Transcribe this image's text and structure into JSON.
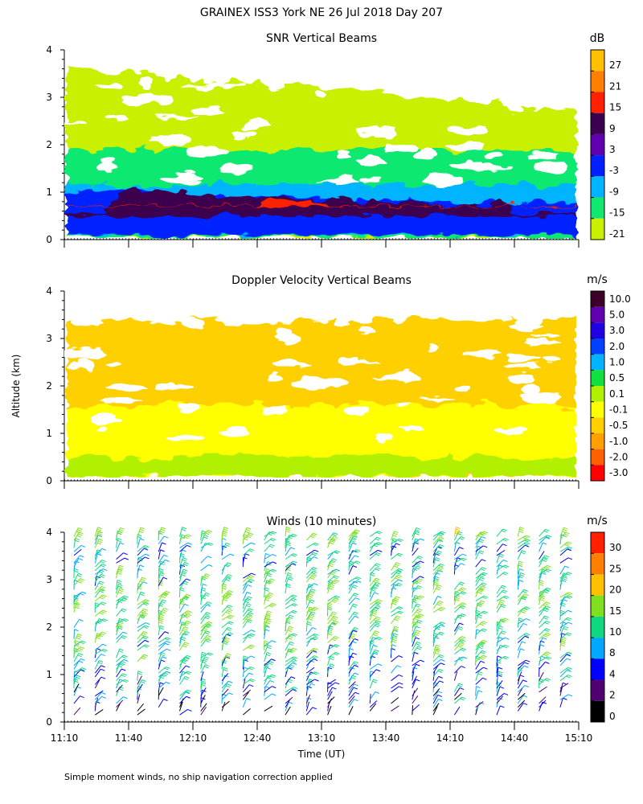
{
  "figure_title": "GRAINEX ISS3 York NE  26 Jul 2018 Day 207",
  "footnote": "Simple moment winds, no ship navigation correction applied",
  "shared_ylabel": "Altitude (km)",
  "shared_xlabel": "Time (UT)",
  "chart_data": [
    {
      "type": "heatmap",
      "title": "SNR Vertical Beams",
      "ylabel": "Altitude (km)",
      "ylim": [
        0,
        4
      ],
      "yticks": [
        "0",
        "1",
        "2",
        "3",
        "4"
      ],
      "xlim": [
        "11:10",
        "15:10"
      ],
      "colorbar": {
        "unit": "dB",
        "labels": [
          "27",
          "21",
          "15",
          "9",
          "3",
          "-3",
          "-9",
          "-15",
          "-21"
        ],
        "colors": [
          "#ffc000",
          "#ff8000",
          "#ff2000",
          "#3c0050",
          "#6000b0",
          "#0020ff",
          "#00b4ff",
          "#10e870",
          "#c8f000"
        ]
      },
      "layers": [
        {
          "color": "#c8f000",
          "alt_bottom": 0.05,
          "alt_top": 3.6
        },
        {
          "color": "#10e870",
          "alt_bottom": 0.05,
          "alt_top": 1.9
        },
        {
          "color": "#00b4ff",
          "alt_bottom": 0.1,
          "alt_top": 1.15
        },
        {
          "color": "#0020ff",
          "alt_bottom": 0.1,
          "alt_top": 1.05
        },
        {
          "color": "#3c0050",
          "alt_bottom": 0.5,
          "alt_top": 1.05
        },
        {
          "color": "#ff2000",
          "alt_bottom": 0.7,
          "alt_top": 1.0
        }
      ]
    },
    {
      "type": "heatmap",
      "title": "Doppler Velocity Vertical Beams",
      "ylabel": "Altitude (km)",
      "ylim": [
        0,
        4
      ],
      "yticks": [
        "0",
        "1",
        "2",
        "3",
        "4"
      ],
      "xlim": [
        "11:10",
        "15:10"
      ],
      "colorbar": {
        "unit": "m/s",
        "labels": [
          "10.0",
          "5.0",
          "3.0",
          "2.0",
          "1.0",
          "0.5",
          "0.1",
          "-0.1",
          "-0.5",
          "-1.0",
          "-2.0",
          "-3.0"
        ],
        "colors": [
          "#3c0028",
          "#6000b0",
          "#2000e0",
          "#0040ff",
          "#00b4ff",
          "#10e040",
          "#b0f000",
          "#ffff00",
          "#ffd000",
          "#ffa000",
          "#ff6000",
          "#ff0000"
        ]
      },
      "layers": [
        {
          "color": "#ffd000",
          "alt_bottom": 0.1,
          "alt_top": 3.4
        },
        {
          "color": "#ffff00",
          "alt_bottom": 0.1,
          "alt_top": 1.6
        },
        {
          "color": "#b0f000",
          "alt_bottom": 0.1,
          "alt_top": 0.5
        }
      ]
    },
    {
      "type": "scatter",
      "title": "Winds (10 minutes)",
      "ylabel": "Altitude (km)",
      "ylim": [
        0,
        4
      ],
      "yticks": [
        "0",
        "1",
        "2",
        "3",
        "4"
      ],
      "xticks": [
        "11:10",
        "11:40",
        "12:10",
        "12:40",
        "13:10",
        "13:40",
        "14:10",
        "14:40",
        "15:10"
      ],
      "xlabel": "Time (UT)",
      "colorbar": {
        "unit": "m/s",
        "labels": [
          "30",
          "25",
          "20",
          "15",
          "10",
          "8",
          "4",
          "2",
          "0"
        ],
        "colors": [
          "#ff2000",
          "#ff8000",
          "#ffc000",
          "#80e020",
          "#10d880",
          "#00a8ff",
          "#0000ff",
          "#500070",
          "#000000"
        ]
      },
      "speed_profile_ms": [
        [
          0.1,
          3
        ],
        [
          0.5,
          6
        ],
        [
          1.0,
          9
        ],
        [
          1.5,
          12
        ],
        [
          2.0,
          13
        ],
        [
          2.5,
          14
        ],
        [
          3.0,
          12
        ],
        [
          3.5,
          9
        ],
        [
          4.0,
          18
        ]
      ]
    }
  ]
}
